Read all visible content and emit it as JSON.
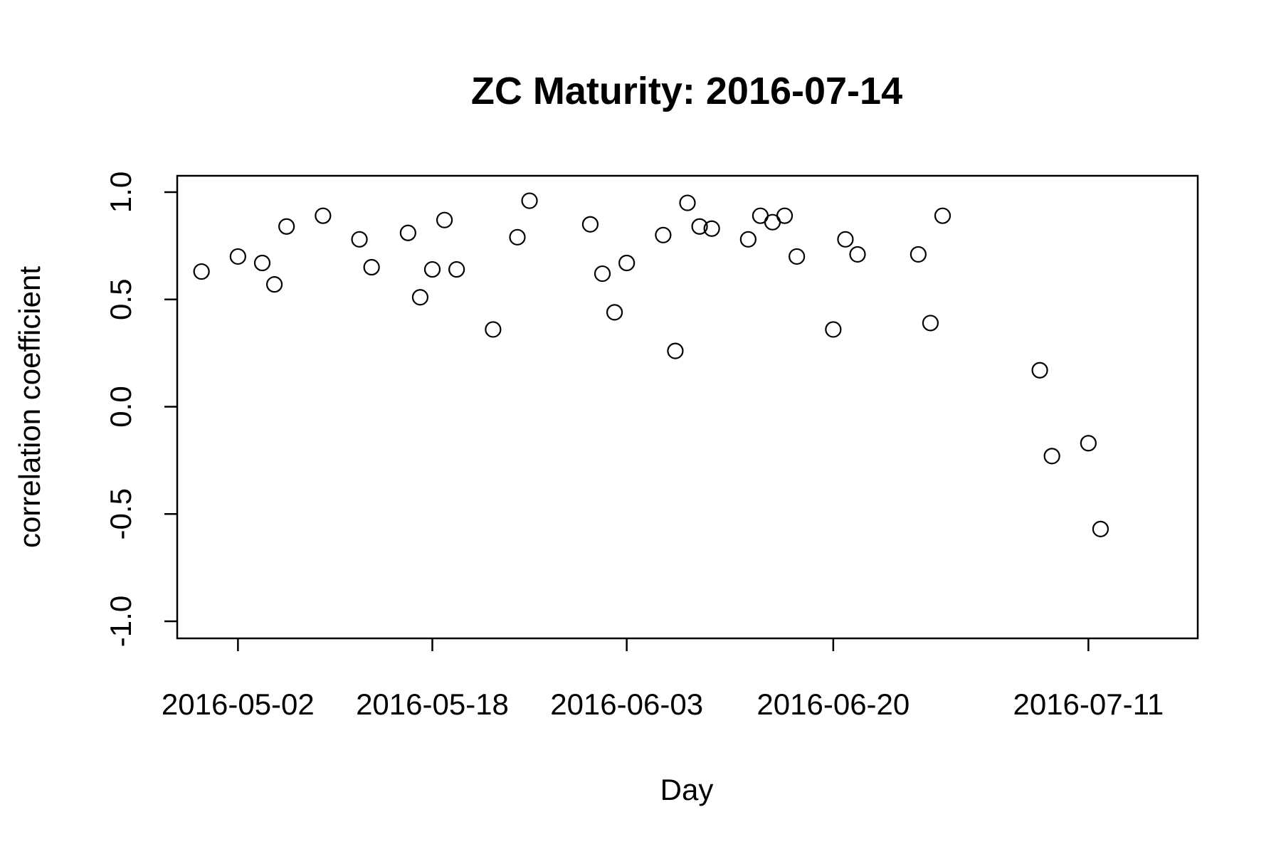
{
  "chart_data": {
    "type": "scatter",
    "title": "ZC Maturity: 2016-07-14",
    "xlabel": "Day",
    "ylabel": "correlation coefficient",
    "ylim": [
      -1.0,
      1.0
    ],
    "xlim": [
      "2016-04-27",
      "2016-07-20"
    ],
    "y_ticks": [
      -1.0,
      -0.5,
      0.0,
      0.5,
      1.0
    ],
    "y_tick_labels": [
      "-1.0",
      "-0.5",
      "0.0",
      "0.5",
      "1.0"
    ],
    "x_ticks": [
      "2016-05-02",
      "2016-05-18",
      "2016-06-03",
      "2016-06-20",
      "2016-07-11"
    ],
    "x_tick_labels": [
      "2016-05-02",
      "2016-05-18",
      "2016-06-03",
      "2016-06-20",
      "2016-07-11"
    ],
    "grid": false,
    "legend": "none",
    "marker": "open-circle",
    "points": [
      {
        "x": "2016-04-29",
        "y": 0.63
      },
      {
        "x": "2016-05-02",
        "y": 0.7
      },
      {
        "x": "2016-05-04",
        "y": 0.67
      },
      {
        "x": "2016-05-05",
        "y": 0.57
      },
      {
        "x": "2016-05-06",
        "y": 0.84
      },
      {
        "x": "2016-05-09",
        "y": 0.89
      },
      {
        "x": "2016-05-12",
        "y": 0.78
      },
      {
        "x": "2016-05-13",
        "y": 0.65
      },
      {
        "x": "2016-05-16",
        "y": 0.81
      },
      {
        "x": "2016-05-17",
        "y": 0.51
      },
      {
        "x": "2016-05-18",
        "y": 0.64
      },
      {
        "x": "2016-05-19",
        "y": 0.87
      },
      {
        "x": "2016-05-20",
        "y": 0.64
      },
      {
        "x": "2016-05-23",
        "y": 0.36
      },
      {
        "x": "2016-05-25",
        "y": 0.79
      },
      {
        "x": "2016-05-26",
        "y": 0.96
      },
      {
        "x": "2016-05-31",
        "y": 0.85
      },
      {
        "x": "2016-06-01",
        "y": 0.62
      },
      {
        "x": "2016-06-02",
        "y": 0.44
      },
      {
        "x": "2016-06-03",
        "y": 0.67
      },
      {
        "x": "2016-06-06",
        "y": 0.8
      },
      {
        "x": "2016-06-07",
        "y": 0.26
      },
      {
        "x": "2016-06-08",
        "y": 0.95
      },
      {
        "x": "2016-06-09",
        "y": 0.84
      },
      {
        "x": "2016-06-10",
        "y": 0.83
      },
      {
        "x": "2016-06-13",
        "y": 0.78
      },
      {
        "x": "2016-06-14",
        "y": 0.89
      },
      {
        "x": "2016-06-15",
        "y": 0.86
      },
      {
        "x": "2016-06-16",
        "y": 0.89
      },
      {
        "x": "2016-06-17",
        "y": 0.7
      },
      {
        "x": "2016-06-20",
        "y": 0.36
      },
      {
        "x": "2016-06-21",
        "y": 0.78
      },
      {
        "x": "2016-06-22",
        "y": 0.71
      },
      {
        "x": "2016-06-27",
        "y": 0.71
      },
      {
        "x": "2016-06-28",
        "y": 0.39
      },
      {
        "x": "2016-06-29",
        "y": 0.89
      },
      {
        "x": "2016-07-07",
        "y": 0.17
      },
      {
        "x": "2016-07-08",
        "y": -0.23
      },
      {
        "x": "2016-07-11",
        "y": -0.17
      },
      {
        "x": "2016-07-12",
        "y": -0.57
      }
    ]
  }
}
